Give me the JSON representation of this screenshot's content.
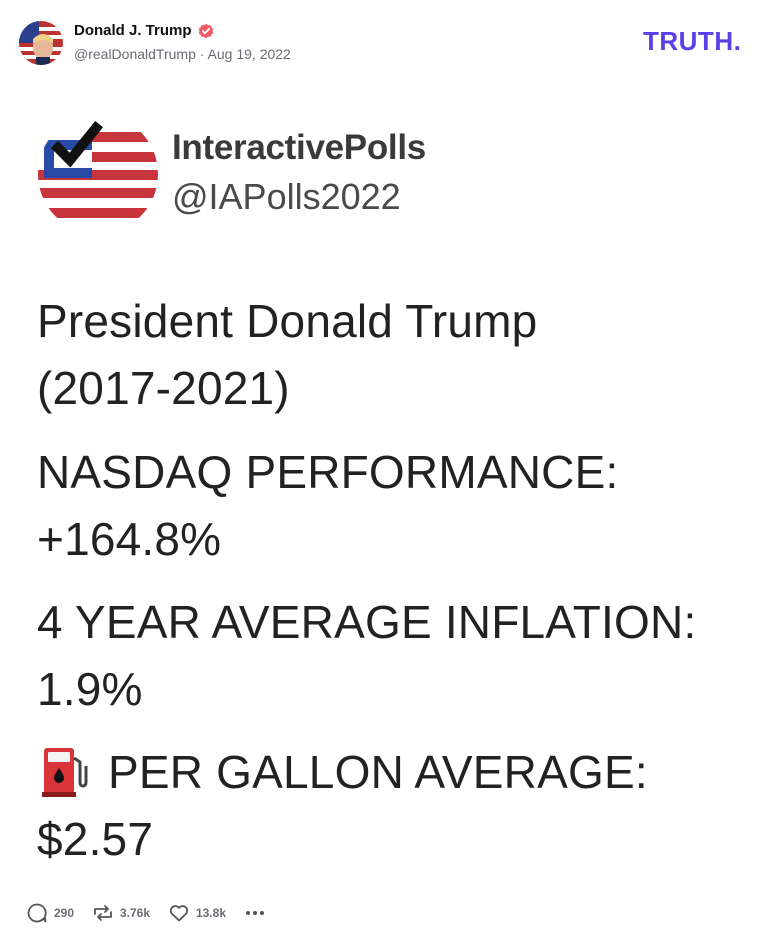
{
  "post": {
    "author_name": "Donald J. Trump",
    "handle": "@realDonaldTrump",
    "separator": "·",
    "date": "Aug 19, 2022",
    "brand": "TRUTH."
  },
  "image": {
    "account_name": "InteractivePolls",
    "account_handle": "@IAPolls2022",
    "line1": "President Donald Trump",
    "line2": "(2017-2021)",
    "line3": "NASDAQ PERFORMANCE:",
    "line4": "+164.8%",
    "line5": "4 YEAR AVERAGE INFLATION:",
    "line6": "1.9%",
    "line7": "PER GALLON AVERAGE:",
    "line8": "$2.57"
  },
  "actions": {
    "replies": "290",
    "retruths": "3.76k",
    "likes": "13.8k"
  },
  "colors": {
    "verified": "#ee5b66",
    "brand": "#5b3ee8",
    "flag_red": "#c8343b",
    "flag_blue": "#2a4aa8"
  },
  "icons": [
    "verified-icon",
    "reply-icon",
    "retruth-icon",
    "like-icon",
    "more-icon",
    "fuel-pump-icon"
  ]
}
